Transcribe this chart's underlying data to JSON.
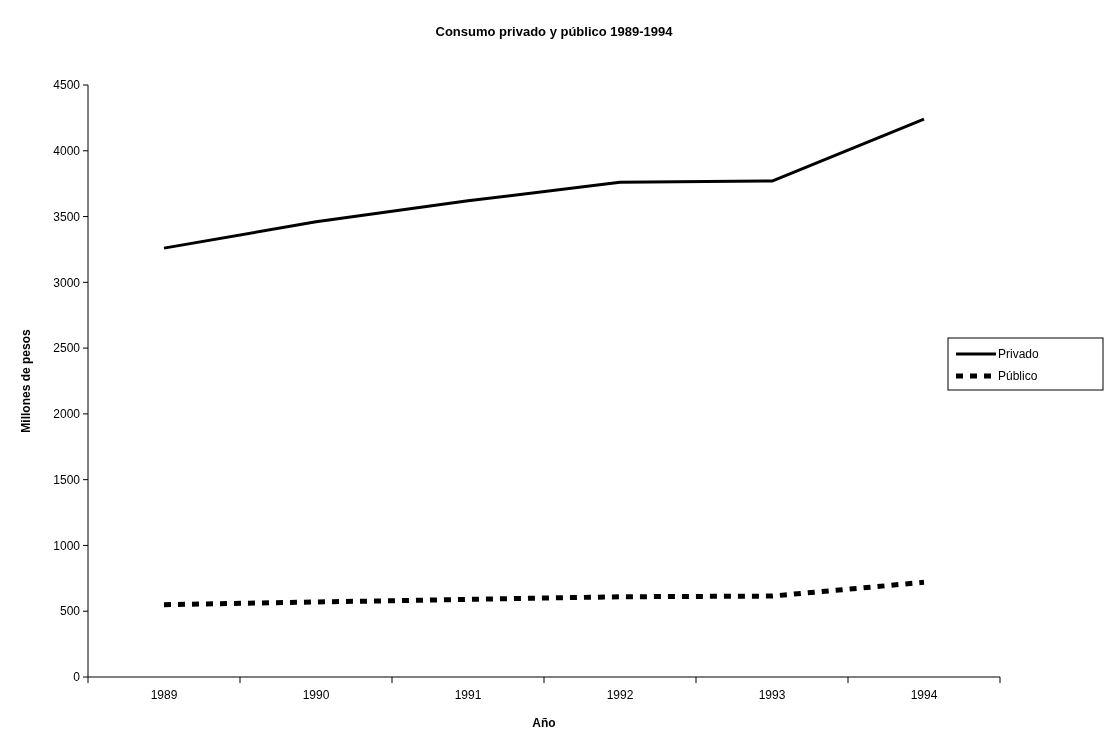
{
  "chart_data": {
    "type": "line",
    "title": "Consumo privado y público 1989-1994",
    "xlabel": "Año",
    "ylabel": "Millones de pesos",
    "categories": [
      "1989",
      "1990",
      "1991",
      "1992",
      "1993",
      "1994"
    ],
    "series": [
      {
        "name": "Privado",
        "color": "#000000",
        "line_style": "solid",
        "values": [
          3260,
          3460,
          3620,
          3760,
          3770,
          4240
        ]
      },
      {
        "name": "Público",
        "color": "#000000",
        "line_style": "dashed",
        "values": [
          550,
          570,
          590,
          610,
          615,
          720
        ]
      }
    ],
    "ylim": [
      0,
      4500
    ],
    "yticks": [
      0,
      500,
      1000,
      1500,
      2000,
      2500,
      3000,
      3500,
      4000,
      4500
    ],
    "grid": false,
    "legend": "right",
    "marker": "none"
  }
}
